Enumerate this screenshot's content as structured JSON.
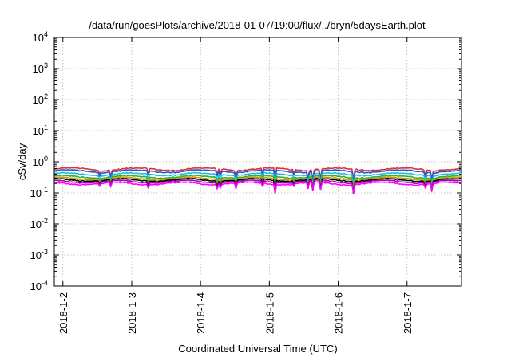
{
  "chart_data": {
    "type": "line",
    "title": "/data/run/goesPlots/archive/2018-01-07/19:00/flux/../bryn/5daysEarth.plot",
    "xlabel": "Coordinated Universal Time (UTC)",
    "ylabel": "cSv/day",
    "yscale": "log",
    "ylim": [
      0.0001,
      10000
    ],
    "xlim": [
      "2018-01-01T21:00",
      "2018-01-07T19:00"
    ],
    "grid": true,
    "legend": "none",
    "y_ticks": [
      {
        "base": "10",
        "exp": "-4",
        "value": 0.0001
      },
      {
        "base": "10",
        "exp": "-3",
        "value": 0.001
      },
      {
        "base": "10",
        "exp": "-2",
        "value": 0.01
      },
      {
        "base": "10",
        "exp": "-1",
        "value": 0.1
      },
      {
        "base": "10",
        "exp": "0",
        "value": 1
      },
      {
        "base": "10",
        "exp": "1",
        "value": 10
      },
      {
        "base": "10",
        "exp": "2",
        "value": 100
      },
      {
        "base": "10",
        "exp": "3",
        "value": 1000
      },
      {
        "base": "10",
        "exp": "4",
        "value": 10000
      }
    ],
    "x_ticks": [
      {
        "label": "2018-1-2",
        "value": "2018-01-02T00:00"
      },
      {
        "label": "2018-1-3",
        "value": "2018-01-03T00:00"
      },
      {
        "label": "2018-1-4",
        "value": "2018-01-04T00:00"
      },
      {
        "label": "2018-1-5",
        "value": "2018-01-05T00:00"
      },
      {
        "label": "2018-1-6",
        "value": "2018-01-06T00:00"
      },
      {
        "label": "2018-1-7",
        "value": "2018-01-07T00:00"
      }
    ],
    "series": [
      {
        "color": "#e03030",
        "level": 0.58,
        "dip_depth": 0.75
      },
      {
        "color": "#2255dd",
        "level": 0.5,
        "dip_depth": 0.7
      },
      {
        "color": "#22bbdd",
        "level": 0.4,
        "dip_depth": 0.8
      },
      {
        "color": "#30b030",
        "level": 0.33,
        "dip_depth": 0.85
      },
      {
        "color": "#c8a000",
        "level": 0.29,
        "dip_depth": 0.85
      },
      {
        "color": "#000000",
        "level": 0.26,
        "dip_depth": 0.85
      },
      {
        "color": "#a000c0",
        "level": 0.23,
        "dip_depth": 0.8
      },
      {
        "color": "#ff00ff",
        "level": 0.2,
        "dip_depth": 0.6
      }
    ]
  }
}
